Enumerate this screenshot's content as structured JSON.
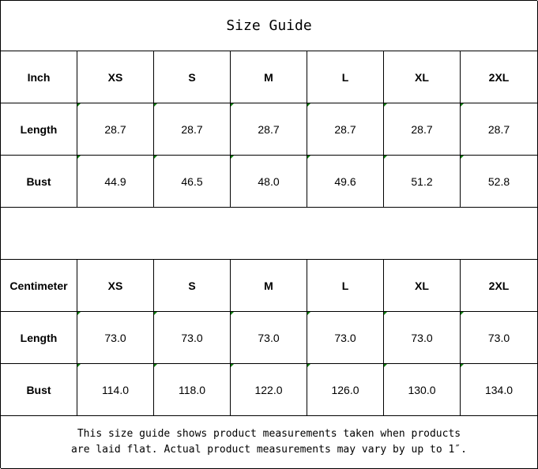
{
  "title": "Size Guide",
  "tables": [
    {
      "unit": "Inch",
      "sizes": [
        "XS",
        "S",
        "M",
        "L",
        "XL",
        "2XL"
      ],
      "rows": [
        {
          "label": "Length",
          "values": [
            "28.7",
            "28.7",
            "28.7",
            "28.7",
            "28.7",
            "28.7"
          ]
        },
        {
          "label": "Bust",
          "values": [
            "44.9",
            "46.5",
            "48.0",
            "49.6",
            "51.2",
            "52.8"
          ]
        }
      ]
    },
    {
      "unit": "Centimeter",
      "sizes": [
        "XS",
        "S",
        "M",
        "L",
        "XL",
        "2XL"
      ],
      "rows": [
        {
          "label": "Length",
          "values": [
            "73.0",
            "73.0",
            "73.0",
            "73.0",
            "73.0",
            "73.0"
          ]
        },
        {
          "label": "Bust",
          "values": [
            "114.0",
            "118.0",
            "122.0",
            "126.0",
            "130.0",
            "134.0"
          ]
        }
      ]
    }
  ],
  "note_lines": [
    "This size guide shows product measurements taken when products",
    "are laid flat. Actual product measurements may vary by up to 1″."
  ],
  "colors": {
    "number_indicator": "#0a7d0a",
    "grid": "#000000"
  }
}
